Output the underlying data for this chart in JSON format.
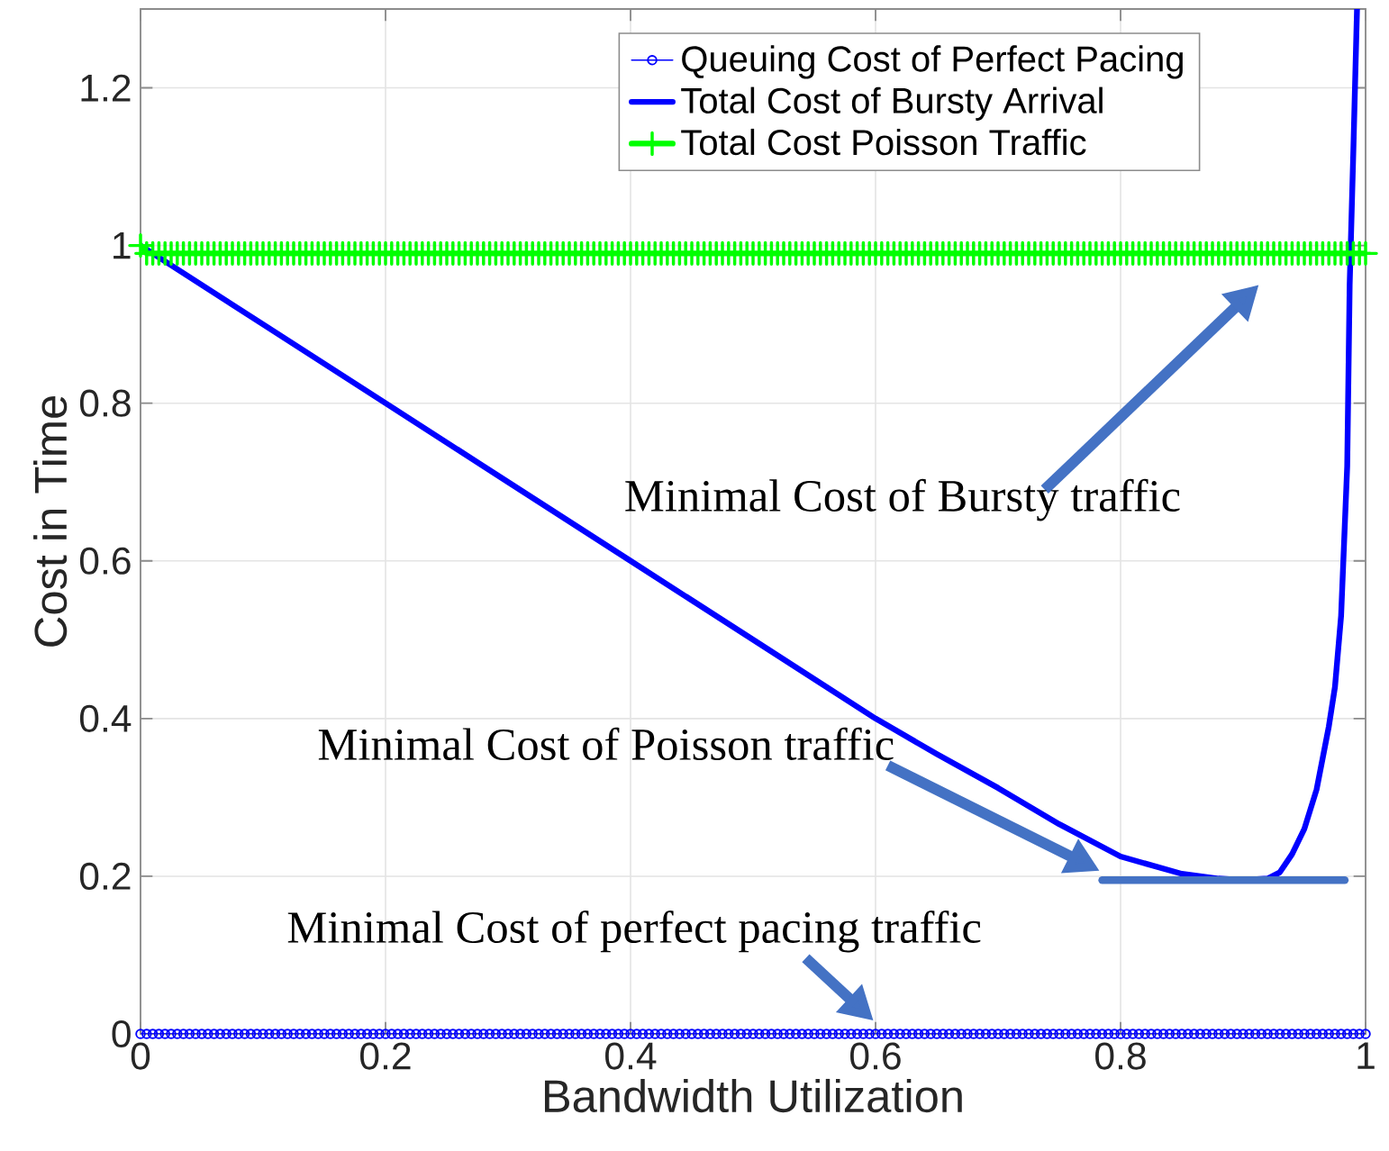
{
  "chart_data": {
    "type": "line",
    "xlabel": "Bandwidth Utilization",
    "ylabel": "Cost in Time",
    "x": [
      0,
      0.005,
      0.01,
      0.015,
      0.02,
      0.025,
      0.03,
      0.035,
      0.04,
      0.045,
      0.05,
      0.055,
      0.06,
      0.065,
      0.07,
      0.075,
      0.08,
      0.085,
      0.09,
      0.095,
      0.1,
      0.105,
      0.11,
      0.115,
      0.12,
      0.125,
      0.13,
      0.135,
      0.14,
      0.145,
      0.15,
      0.155,
      0.16,
      0.165,
      0.17,
      0.175,
      0.18,
      0.185,
      0.19,
      0.195,
      0.2,
      0.205,
      0.21,
      0.215,
      0.22,
      0.225,
      0.23,
      0.235,
      0.24,
      0.245,
      0.25,
      0.255,
      0.26,
      0.265,
      0.27,
      0.275,
      0.28,
      0.285,
      0.29,
      0.295,
      0.3,
      0.305,
      0.31,
      0.315,
      0.32,
      0.325,
      0.33,
      0.335,
      0.34,
      0.345,
      0.35,
      0.355,
      0.36,
      0.365,
      0.37,
      0.375,
      0.38,
      0.385,
      0.39,
      0.395,
      0.4,
      0.405,
      0.41,
      0.415,
      0.42,
      0.425,
      0.43,
      0.435,
      0.44,
      0.445,
      0.45,
      0.455,
      0.46,
      0.465,
      0.47,
      0.475,
      0.48,
      0.485,
      0.49,
      0.495,
      0.5,
      0.505,
      0.51,
      0.515,
      0.52,
      0.525,
      0.53,
      0.535,
      0.54,
      0.545,
      0.55,
      0.555,
      0.56,
      0.565,
      0.57,
      0.575,
      0.58,
      0.585,
      0.59,
      0.595,
      0.6,
      0.605,
      0.61,
      0.615,
      0.62,
      0.625,
      0.63,
      0.635,
      0.64,
      0.645,
      0.65,
      0.655,
      0.66,
      0.665,
      0.67,
      0.675,
      0.68,
      0.685,
      0.69,
      0.695,
      0.7,
      0.705,
      0.71,
      0.715,
      0.72,
      0.725,
      0.73,
      0.735,
      0.74,
      0.745,
      0.75,
      0.755,
      0.76,
      0.765,
      0.77,
      0.775,
      0.78,
      0.785,
      0.79,
      0.795,
      0.8,
      0.805,
      0.81,
      0.815,
      0.82,
      0.825,
      0.83,
      0.835,
      0.84,
      0.845,
      0.85,
      0.855,
      0.86,
      0.865,
      0.87,
      0.875,
      0.88,
      0.885,
      0.89,
      0.895,
      0.9,
      0.905,
      0.91,
      0.915,
      0.92,
      0.925,
      0.93,
      0.935,
      0.94,
      0.945,
      0.95,
      0.955,
      0.96,
      0.965,
      0.97,
      0.975,
      0.98,
      0.985,
      0.99,
      0.995,
      1
    ],
    "xlim": [
      0,
      1
    ],
    "ylim": [
      0,
      1.3
    ],
    "xticks": [
      0,
      0.2,
      0.4,
      0.6,
      0.8,
      1
    ],
    "yticks": [
      0,
      0.2,
      0.4,
      0.6,
      0.8,
      1,
      1.2
    ],
    "grid": true,
    "legend": "top right",
    "series": [
      {
        "name": "Queuing Cost of Perfect Pacing",
        "color": "#0000ff",
        "marker": "circle",
        "values": [
          0,
          0,
          0,
          0,
          0,
          0,
          0,
          0,
          0,
          0,
          0,
          0,
          0,
          0,
          0,
          0,
          0,
          0,
          0,
          0,
          0,
          0,
          0,
          0,
          0,
          0,
          0,
          0,
          0,
          0,
          0,
          0,
          0,
          0,
          0,
          0,
          0,
          0,
          0,
          0,
          0,
          0,
          0,
          0,
          0,
          0,
          0,
          0,
          0,
          0,
          0,
          0,
          0,
          0,
          0,
          0,
          0,
          0,
          0,
          0,
          0,
          0,
          0,
          0,
          0,
          0,
          0,
          0,
          0,
          0,
          0,
          0,
          0,
          0,
          0,
          0,
          0,
          0,
          0,
          0,
          0,
          0,
          0,
          0,
          0,
          0,
          0,
          0,
          0,
          0,
          0,
          0,
          0,
          0,
          0,
          0,
          0,
          0,
          0,
          0,
          0,
          0,
          0,
          0,
          0,
          0,
          0,
          0,
          0,
          0,
          0,
          0,
          0,
          0,
          0,
          0,
          0,
          0,
          0,
          0,
          0,
          0,
          0,
          0,
          0,
          0,
          0,
          0,
          0,
          0,
          0,
          0,
          0,
          0,
          0,
          0,
          0,
          0,
          0,
          0,
          0,
          0,
          0,
          0,
          0,
          0,
          0,
          0,
          0,
          0,
          0,
          0,
          0,
          0,
          0,
          0,
          0,
          0,
          0,
          0,
          0,
          0,
          0,
          0,
          0,
          0,
          0,
          0,
          0,
          0,
          0,
          0,
          0,
          0,
          0,
          0,
          0,
          0,
          0,
          0,
          0,
          0,
          0,
          0,
          0,
          0,
          0,
          0,
          0,
          0,
          0,
          0,
          0,
          0,
          0,
          0,
          0,
          0,
          0,
          0,
          0
        ]
      },
      {
        "name": "Total Cost of Bursty Arrival",
        "color": "#0000ff",
        "x": [
          0,
          0.1,
          0.2,
          0.3,
          0.4,
          0.5,
          0.6,
          0.65,
          0.7,
          0.75,
          0.8,
          0.85,
          0.88,
          0.9,
          0.92,
          0.93,
          0.94,
          0.95,
          0.96,
          0.97,
          0.975,
          0.98,
          0.985,
          0.987,
          0.99,
          0.993
        ],
        "values": [
          1,
          0.9,
          0.8,
          0.7,
          0.6,
          0.5,
          0.4,
          0.355,
          0.312,
          0.266,
          0.225,
          0.203,
          0.197,
          0.195,
          0.197,
          0.205,
          0.228,
          0.26,
          0.31,
          0.39,
          0.44,
          0.53,
          0.72,
          0.95,
          1.12,
          1.3
        ]
      },
      {
        "name": "Total Cost Poisson Traffic",
        "color": "#00ff00",
        "marker": "cross",
        "values": [
          1,
          0.99,
          0.99,
          0.99,
          0.99,
          0.99,
          0.99,
          0.99,
          0.99,
          0.99,
          0.99,
          0.99,
          0.99,
          0.99,
          0.99,
          0.99,
          0.99,
          0.99,
          0.99,
          0.99,
          0.99,
          0.99,
          0.99,
          0.99,
          0.99,
          0.99,
          0.99,
          0.99,
          0.99,
          0.99,
          0.99,
          0.99,
          0.99,
          0.99,
          0.99,
          0.99,
          0.99,
          0.99,
          0.99,
          0.99,
          0.99,
          0.99,
          0.99,
          0.99,
          0.99,
          0.99,
          0.99,
          0.99,
          0.99,
          0.99,
          0.99,
          0.99,
          0.99,
          0.99,
          0.99,
          0.99,
          0.99,
          0.99,
          0.99,
          0.99,
          0.99,
          0.99,
          0.99,
          0.99,
          0.99,
          0.99,
          0.99,
          0.99,
          0.99,
          0.99,
          0.99,
          0.99,
          0.99,
          0.99,
          0.99,
          0.99,
          0.99,
          0.99,
          0.99,
          0.99,
          0.99,
          0.99,
          0.99,
          0.99,
          0.99,
          0.99,
          0.99,
          0.99,
          0.99,
          0.99,
          0.99,
          0.99,
          0.99,
          0.99,
          0.99,
          0.99,
          0.99,
          0.99,
          0.99,
          0.99,
          0.99,
          0.99,
          0.99,
          0.99,
          0.99,
          0.99,
          0.99,
          0.99,
          0.99,
          0.99,
          0.99,
          0.99,
          0.99,
          0.99,
          0.99,
          0.99,
          0.99,
          0.99,
          0.99,
          0.99,
          0.99,
          0.99,
          0.99,
          0.99,
          0.99,
          0.99,
          0.99,
          0.99,
          0.99,
          0.99,
          0.99,
          0.99,
          0.99,
          0.99,
          0.99,
          0.99,
          0.99,
          0.99,
          0.99,
          0.99,
          0.99,
          0.99,
          0.99,
          0.99,
          0.99,
          0.99,
          0.99,
          0.99,
          0.99,
          0.99,
          0.99,
          0.99,
          0.99,
          0.99,
          0.99,
          0.99,
          0.99,
          0.99,
          0.99,
          0.99,
          0.99,
          0.99,
          0.99,
          0.99,
          0.99,
          0.99,
          0.99,
          0.99,
          0.99,
          0.99,
          0.99,
          0.99,
          0.99,
          0.99,
          0.99,
          0.99,
          0.99,
          0.99,
          0.99,
          0.99,
          0.99,
          0.99,
          0.99,
          0.99,
          0.99,
          0.99,
          0.99,
          0.99,
          0.99,
          0.99,
          0.99,
          0.99,
          0.99,
          0.99,
          0.99,
          0.99,
          0.99,
          0.99,
          0.99,
          0.99,
          0.99
        ]
      },
      {
        "color": "#4472c4",
        "x": [
          0.785,
          0.983
        ],
        "values": [
          0.195,
          0.195
        ]
      }
    ],
    "annotations": [
      "Minimal Cost of Bursty traffic",
      "Minimal Cost of Poisson traffic",
      {
        "text": "Minimal Cost of perfect pacing traffic",
        "x": 0.61,
        "y": 0
      }
    ]
  }
}
